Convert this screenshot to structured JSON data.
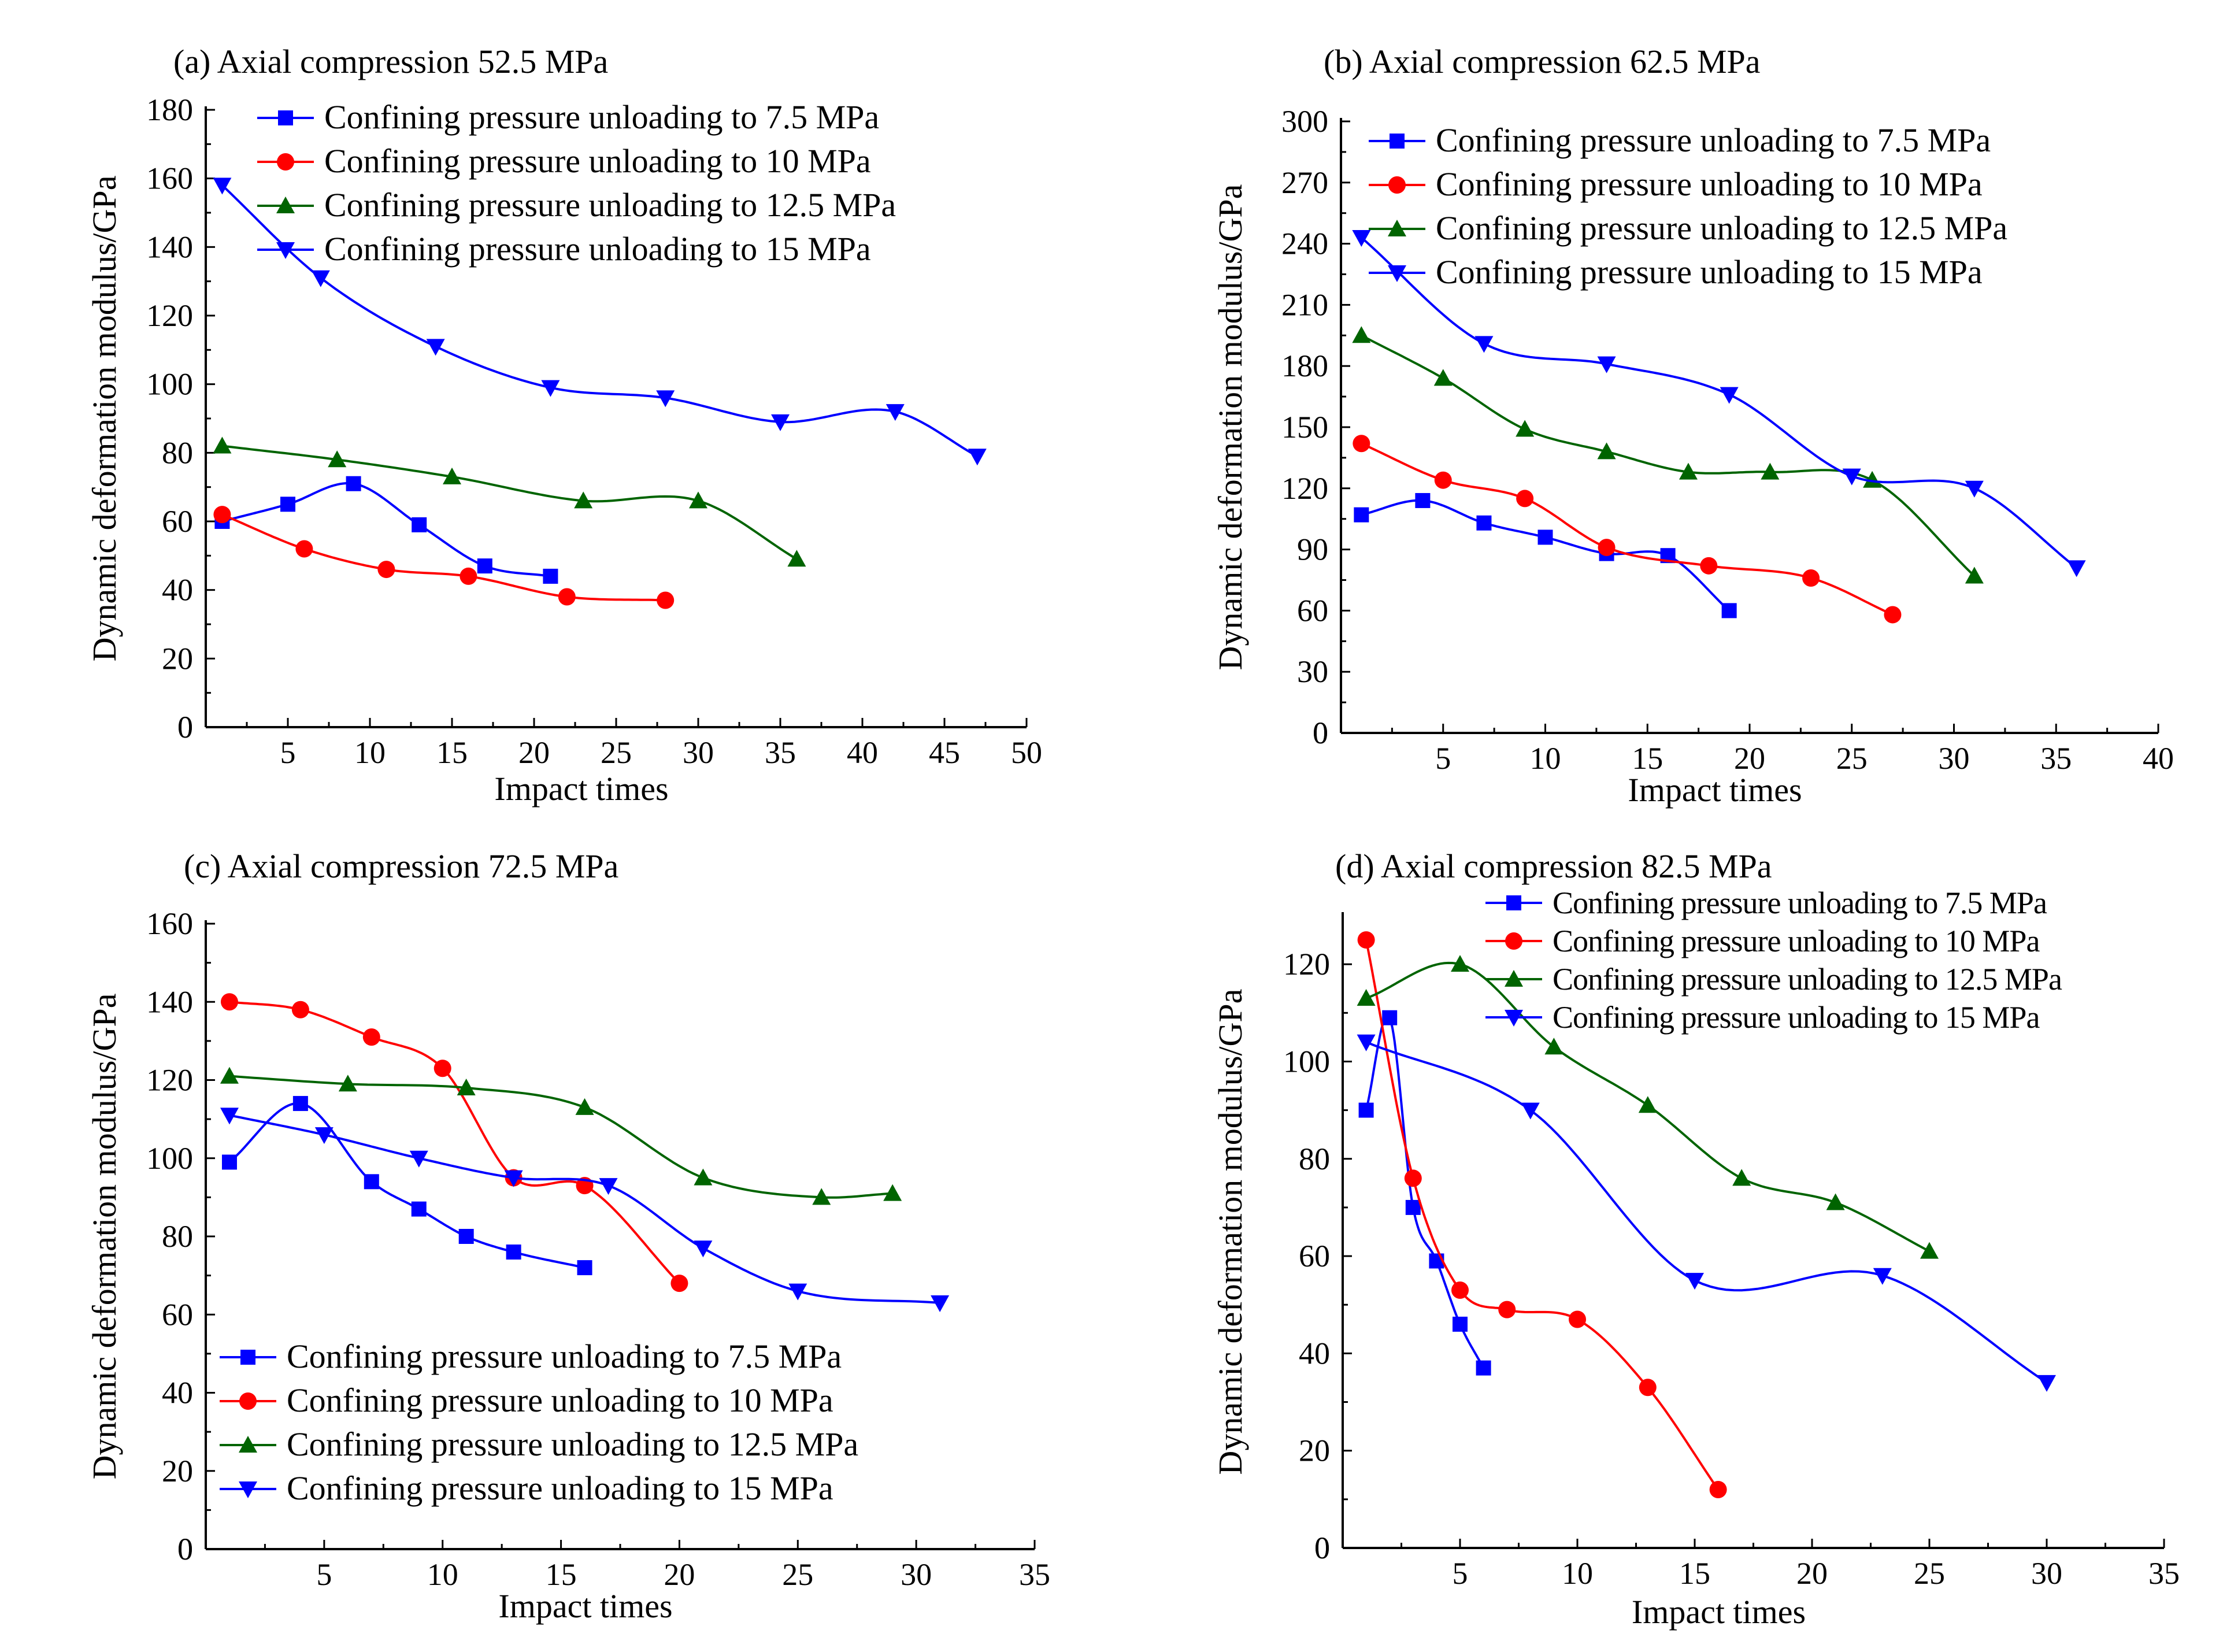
{
  "chart_data": [
    {
      "type": "line",
      "title": "(a) Axial compression 52.5 MPa",
      "xlabel": "Impact times",
      "ylabel": "Dynamic deformation modulus/GPa",
      "xlim": [
        0,
        50
      ],
      "ylim": [
        0,
        180
      ],
      "xticks": [
        5,
        10,
        15,
        20,
        25,
        30,
        35,
        40,
        45,
        50
      ],
      "yticks": [
        0,
        20,
        40,
        60,
        80,
        100,
        120,
        140,
        160,
        180
      ],
      "legend_position": "top-right",
      "series": [
        {
          "name": "Confining pressure unloading to 7.5 MPa",
          "color": "#0000ff",
          "marker": "square",
          "x": [
            1,
            5,
            9,
            13,
            17,
            21
          ],
          "y": [
            60,
            65,
            71,
            59,
            47,
            44
          ]
        },
        {
          "name": "Confining pressure unloading to 10 MPa",
          "color": "#ff0000",
          "marker": "circle",
          "x": [
            1,
            6,
            11,
            16,
            22,
            28
          ],
          "y": [
            62,
            52,
            46,
            44,
            38,
            37
          ]
        },
        {
          "name": "Confining pressure unloading to 12.5 MPa",
          "color": "#006400",
          "marker": "triangle-up",
          "x": [
            1,
            8,
            15,
            23,
            30,
            36
          ],
          "y": [
            82,
            78,
            73,
            66,
            66,
            49
          ]
        },
        {
          "name": "Confining pressure unloading to 15 MPa",
          "color": "#0000ff",
          "marker": "triangle-down",
          "x": [
            1,
            7,
            14,
            21,
            28,
            35,
            42,
            47
          ],
          "y": [
            158,
            131,
            111,
            99,
            96,
            89,
            92,
            79
          ]
        }
      ]
    },
    {
      "type": "line",
      "title": "(b) Axial compression 62.5 MPa",
      "xlabel": "Impact times",
      "ylabel": "Dynamic deformation modulus/GPa",
      "xlim": [
        0,
        40
      ],
      "ylim": [
        0,
        300
      ],
      "xticks": [
        5,
        10,
        15,
        20,
        25,
        30,
        35,
        40
      ],
      "yticks": [
        0,
        30,
        60,
        90,
        120,
        150,
        180,
        210,
        240,
        270,
        300
      ],
      "legend_position": "top-right",
      "series": [
        {
          "name": "Confining pressure unloading to 7.5 MPa",
          "color": "#0000ff",
          "marker": "square",
          "x": [
            1,
            4,
            7,
            10,
            13,
            16,
            19
          ],
          "y": [
            107,
            114,
            103,
            96,
            88,
            87,
            60
          ]
        },
        {
          "name": "Confining pressure unloading to 10 MPa",
          "color": "#ff0000",
          "marker": "circle",
          "x": [
            1,
            5,
            9,
            13,
            18,
            23,
            27
          ],
          "y": [
            142,
            124,
            115,
            91,
            82,
            76,
            58
          ]
        },
        {
          "name": "Confining pressure unloading to 12.5 MPa",
          "color": "#006400",
          "marker": "triangle-up",
          "x": [
            1,
            5,
            9,
            13,
            17,
            21,
            26,
            31
          ],
          "y": [
            195,
            174,
            149,
            138,
            128,
            128,
            124,
            77
          ]
        },
        {
          "name": "Confining pressure unloading to 15 MPa",
          "color": "#0000ff",
          "marker": "triangle-down",
          "x": [
            1,
            7,
            13,
            19,
            25,
            31,
            36
          ],
          "y": [
            243,
            191,
            181,
            166,
            126,
            120,
            81
          ]
        }
      ]
    },
    {
      "type": "line",
      "title": "(c) Axial compression 72.5 MPa",
      "xlabel": "Impact times",
      "ylabel": "Dynamic deformation modulus/GPa",
      "xlim": [
        0,
        35
      ],
      "ylim": [
        0,
        160
      ],
      "xticks": [
        5,
        10,
        15,
        20,
        25,
        30,
        35
      ],
      "yticks": [
        0,
        20,
        40,
        60,
        80,
        100,
        120,
        140,
        160
      ],
      "legend_position": "bottom-right",
      "series": [
        {
          "name": "Confining pressure unloading to 7.5 MPa",
          "color": "#0000ff",
          "marker": "square",
          "x": [
            1,
            4,
            7,
            9,
            11,
            13,
            16
          ],
          "y": [
            99,
            114,
            94,
            87,
            80,
            76,
            72
          ]
        },
        {
          "name": "Confining pressure unloading to 10 MPa",
          "color": "#ff0000",
          "marker": "circle",
          "x": [
            1,
            4,
            7,
            10,
            13,
            16,
            20
          ],
          "y": [
            140,
            138,
            131,
            123,
            95,
            93,
            68
          ]
        },
        {
          "name": "Confining pressure unloading to 12.5 MPa",
          "color": "#006400",
          "marker": "triangle-up",
          "x": [
            1,
            6,
            11,
            16,
            21,
            26,
            29
          ],
          "y": [
            121,
            119,
            118,
            113,
            95,
            90,
            91
          ]
        },
        {
          "name": "Confining pressure unloading to 15 MPa",
          "color": "#0000ff",
          "marker": "triangle-down",
          "x": [
            1,
            5,
            9,
            13,
            17,
            21,
            25,
            31
          ],
          "y": [
            111,
            106,
            100,
            95,
            93,
            77,
            66,
            63
          ]
        }
      ]
    },
    {
      "type": "line",
      "title": "(d) Axial compression 82.5 MPa",
      "xlabel": "Impact times",
      "ylabel": "Dynamic deformation modulus/GPa",
      "xlim": [
        0,
        35
      ],
      "ylim": [
        0,
        130
      ],
      "xticks": [
        5,
        10,
        15,
        20,
        25,
        30,
        35
      ],
      "yticks": [
        0,
        20,
        40,
        60,
        80,
        100,
        120
      ],
      "legend_position": "top-right",
      "series": [
        {
          "name": "Confining pressure unloading to 7.5 MPa",
          "color": "#0000ff",
          "marker": "square",
          "x": [
            1,
            2,
            3,
            4,
            5,
            6
          ],
          "y": [
            90,
            109,
            70,
            59,
            46,
            37
          ]
        },
        {
          "name": "Confining pressure unloading to 10 MPa",
          "color": "#ff0000",
          "marker": "circle",
          "x": [
            1,
            3,
            5,
            7,
            10,
            13,
            16
          ],
          "y": [
            125,
            76,
            53,
            49,
            47,
            33,
            12
          ]
        },
        {
          "name": "Confining pressure unloading to 12.5 MPa",
          "color": "#006400",
          "marker": "triangle-up",
          "x": [
            1,
            5,
            9,
            13,
            17,
            21,
            25
          ],
          "y": [
            113,
            120,
            103,
            91,
            76,
            71,
            61
          ]
        },
        {
          "name": "Confining pressure unloading to 15 MPa",
          "color": "#0000ff",
          "marker": "triangle-down",
          "x": [
            1,
            8,
            15,
            23,
            30
          ],
          "y": [
            104,
            90,
            55,
            56,
            34
          ]
        }
      ]
    }
  ]
}
